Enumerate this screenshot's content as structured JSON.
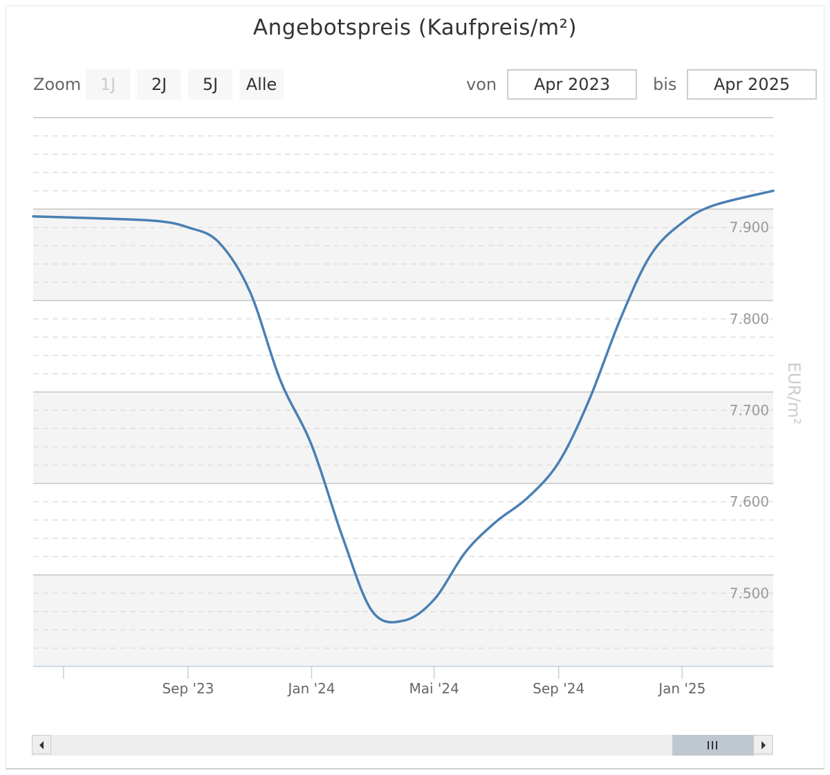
{
  "chart_title": "Angebotspreis (Kaufpreis/m²)",
  "zoom": {
    "label": "Zoom",
    "buttons": [
      {
        "label": "1J",
        "disabled": true
      },
      {
        "label": "2J",
        "disabled": false
      },
      {
        "label": "5J",
        "disabled": false
      },
      {
        "label": "Alle",
        "disabled": false
      }
    ]
  },
  "range": {
    "from_label": "von",
    "from_value": "Apr 2023",
    "to_label": "bis",
    "to_value": "Apr 2025"
  },
  "colors": {
    "line": "#4a7fb3",
    "band": "#f4f4f4",
    "grid": "#c4c4c4",
    "minor_grid": "#dedede",
    "axis": "#c0d0e0",
    "tick_text": "#666666",
    "y_text": "#999999",
    "y_title": "#cccccc"
  },
  "chart_data": {
    "type": "line",
    "title": "Angebotspreis (Kaufpreis/m²)",
    "xlabel": "",
    "ylabel": "EUR/m²",
    "x_ticks": [
      "Sep '23",
      "Jan '24",
      "Mai '24",
      "Sep '24",
      "Jan '25"
    ],
    "y_ticks": [
      "7.500",
      "7.600",
      "7.700",
      "7.800",
      "7.900"
    ],
    "y_tick_values": [
      7500,
      7600,
      7700,
      7800,
      7900
    ],
    "ylim": [
      7420,
      8020
    ],
    "x_range": [
      "2023-04-01",
      "2025-04-01"
    ],
    "grid": true,
    "series": [
      {
        "name": "",
        "points": [
          {
            "x": "2023-04-01",
            "y": 7912
          },
          {
            "x": "2023-06-01",
            "y": 7910
          },
          {
            "x": "2023-08-01",
            "y": 7907
          },
          {
            "x": "2023-09-01",
            "y": 7900
          },
          {
            "x": "2023-10-01",
            "y": 7884
          },
          {
            "x": "2023-11-01",
            "y": 7830
          },
          {
            "x": "2023-12-01",
            "y": 7733
          },
          {
            "x": "2024-01-01",
            "y": 7662
          },
          {
            "x": "2024-02-01",
            "y": 7560
          },
          {
            "x": "2024-03-01",
            "y": 7480
          },
          {
            "x": "2024-04-01",
            "y": 7470
          },
          {
            "x": "2024-05-01",
            "y": 7493
          },
          {
            "x": "2024-06-01",
            "y": 7545
          },
          {
            "x": "2024-07-01",
            "y": 7578
          },
          {
            "x": "2024-08-01",
            "y": 7604
          },
          {
            "x": "2024-09-01",
            "y": 7643
          },
          {
            "x": "2024-10-01",
            "y": 7711
          },
          {
            "x": "2024-11-01",
            "y": 7800
          },
          {
            "x": "2024-12-01",
            "y": 7870
          },
          {
            "x": "2025-01-01",
            "y": 7905
          },
          {
            "x": "2025-02-01",
            "y": 7924
          },
          {
            "x": "2025-04-01",
            "y": 7940
          }
        ]
      }
    ]
  }
}
